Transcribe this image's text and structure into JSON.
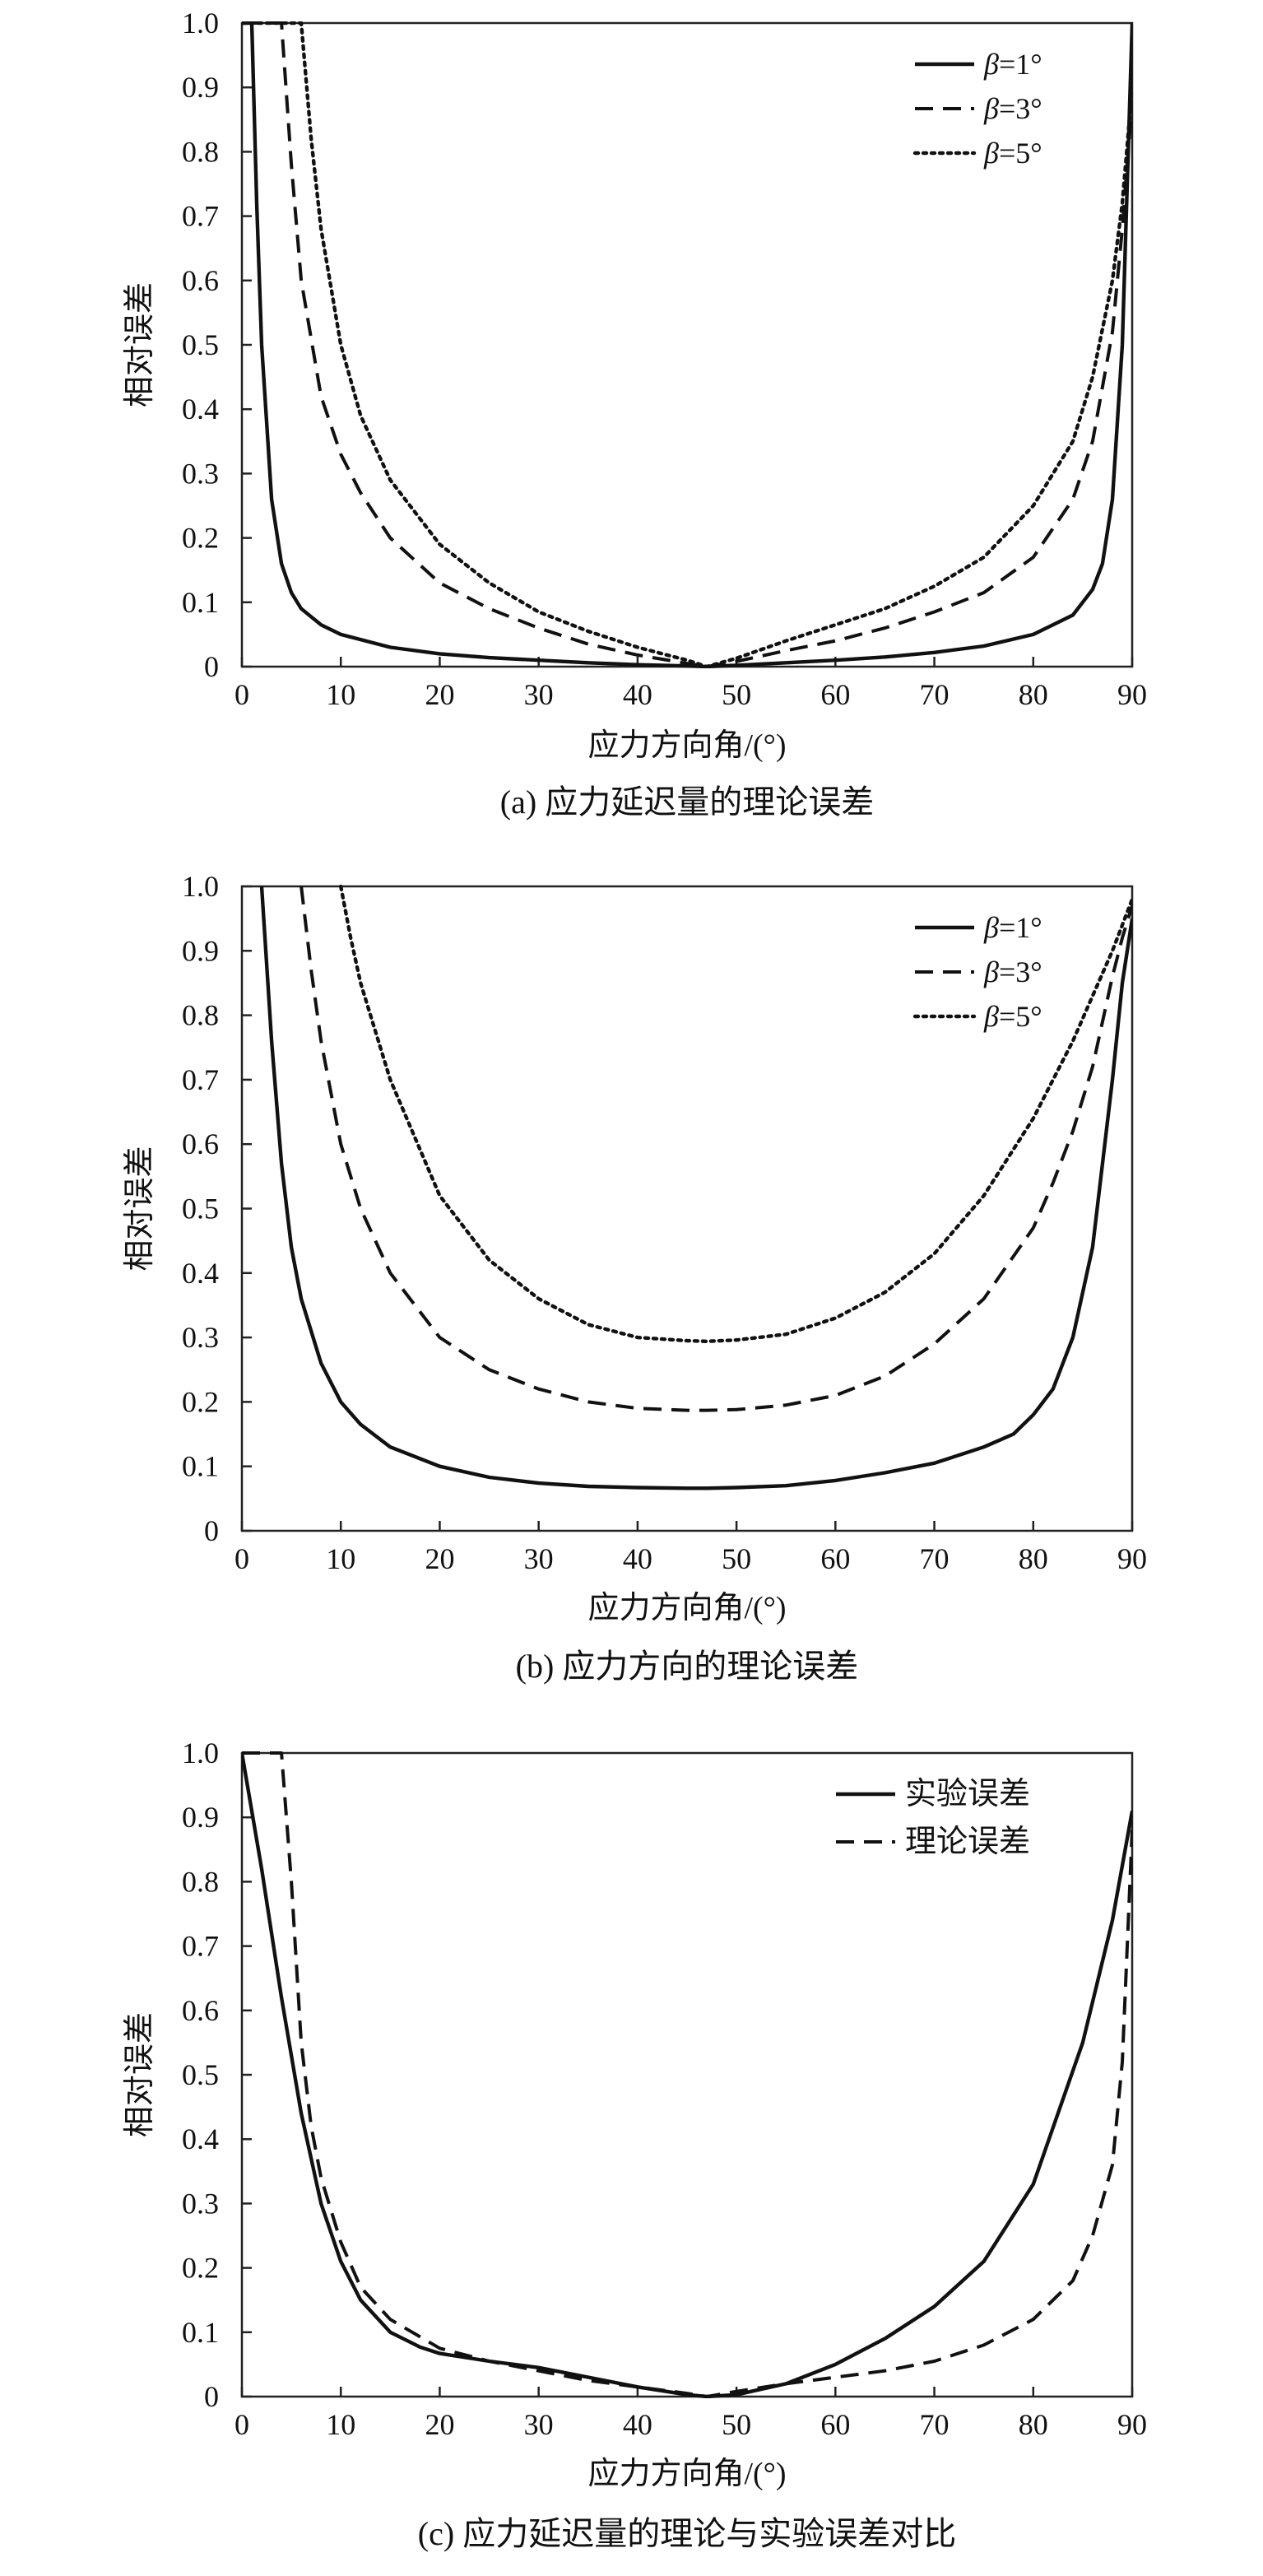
{
  "colors": {
    "line": "#111111",
    "axis": "#222222",
    "background": "#ffffff"
  },
  "chart_data": [
    {
      "id": "a",
      "type": "line",
      "caption": "(a) 应力延迟量的理论误差",
      "xlabel": "应力方向角/(°)",
      "ylabel": "相对误差",
      "xlim": [
        0,
        90
      ],
      "ylim": [
        0,
        1.0
      ],
      "xticks": [
        "0",
        "10",
        "20",
        "30",
        "40",
        "50",
        "60",
        "70",
        "80",
        "90"
      ],
      "yticks": [
        "0",
        "0.1",
        "0.2",
        "0.3",
        "0.4",
        "0.5",
        "0.6",
        "0.7",
        "0.8",
        "0.9",
        "1.0"
      ],
      "grid": false,
      "legend_position": "top-right",
      "series": [
        {
          "name": "β=1°",
          "style": "solid",
          "x": [
            0,
            1,
            1.5,
            2,
            3,
            4,
            5,
            6,
            8,
            10,
            15,
            20,
            25,
            30,
            35,
            40,
            45,
            47,
            50,
            55,
            60,
            65,
            70,
            75,
            80,
            84,
            86,
            87,
            88,
            89,
            90
          ],
          "y": [
            1.0,
            1.0,
            0.72,
            0.5,
            0.26,
            0.16,
            0.115,
            0.09,
            0.065,
            0.05,
            0.03,
            0.02,
            0.014,
            0.01,
            0.006,
            0.003,
            0.001,
            0,
            0.002,
            0.006,
            0.01,
            0.015,
            0.022,
            0.032,
            0.05,
            0.08,
            0.12,
            0.16,
            0.26,
            0.5,
            1.0
          ]
        },
        {
          "name": "β=3°",
          "style": "dashed",
          "x": [
            0,
            4,
            5,
            6,
            8,
            10,
            12,
            15,
            20,
            25,
            30,
            35,
            40,
            45,
            47,
            50,
            55,
            60,
            65,
            70,
            75,
            80,
            84,
            86,
            88,
            89,
            90
          ],
          "y": [
            1.0,
            1.0,
            0.78,
            0.6,
            0.42,
            0.33,
            0.27,
            0.2,
            0.13,
            0.09,
            0.06,
            0.035,
            0.018,
            0.005,
            0,
            0.008,
            0.025,
            0.04,
            0.06,
            0.085,
            0.115,
            0.17,
            0.26,
            0.35,
            0.52,
            0.68,
            0.88
          ]
        },
        {
          "name": "β=5°",
          "style": "dotted",
          "x": [
            0,
            6,
            7,
            8,
            10,
            12,
            15,
            20,
            25,
            30,
            35,
            40,
            45,
            47,
            50,
            55,
            60,
            65,
            70,
            75,
            80,
            84,
            86,
            88,
            89,
            90
          ],
          "y": [
            1.0,
            1.0,
            0.82,
            0.68,
            0.5,
            0.39,
            0.29,
            0.19,
            0.13,
            0.085,
            0.055,
            0.03,
            0.01,
            0,
            0.013,
            0.04,
            0.065,
            0.09,
            0.125,
            0.17,
            0.25,
            0.35,
            0.45,
            0.6,
            0.72,
            0.9
          ]
        }
      ]
    },
    {
      "id": "b",
      "type": "line",
      "caption": "(b) 应力方向的理论误差",
      "xlabel": "应力方向角/(°)",
      "ylabel": "相对误差",
      "xlim": [
        0,
        90
      ],
      "ylim": [
        0,
        1.0
      ],
      "xticks": [
        "0",
        "10",
        "20",
        "30",
        "40",
        "50",
        "60",
        "70",
        "80",
        "90"
      ],
      "yticks": [
        "0",
        "0.1",
        "0.2",
        "0.3",
        "0.4",
        "0.5",
        "0.6",
        "0.7",
        "0.8",
        "0.9",
        "1.0"
      ],
      "grid": false,
      "legend_position": "top-right",
      "series": [
        {
          "name": "β=1°",
          "style": "solid",
          "x": [
            2,
            3,
            4,
            5,
            6,
            8,
            10,
            12,
            15,
            20,
            25,
            30,
            35,
            40,
            45,
            47,
            50,
            55,
            60,
            65,
            70,
            75,
            78,
            80,
            82,
            84,
            86,
            88,
            89,
            90
          ],
          "y": [
            1.0,
            0.76,
            0.57,
            0.44,
            0.36,
            0.26,
            0.2,
            0.165,
            0.13,
            0.1,
            0.083,
            0.074,
            0.069,
            0.067,
            0.066,
            0.066,
            0.067,
            0.07,
            0.078,
            0.09,
            0.105,
            0.13,
            0.15,
            0.18,
            0.22,
            0.3,
            0.44,
            0.7,
            0.85,
            0.95
          ]
        },
        {
          "name": "β=3°",
          "style": "dashed",
          "x": [
            6,
            7,
            8,
            10,
            12,
            15,
            20,
            25,
            30,
            35,
            40,
            45,
            47,
            50,
            55,
            60,
            65,
            70,
            75,
            80,
            82,
            84,
            86,
            88,
            89,
            90
          ],
          "y": [
            1.0,
            0.87,
            0.76,
            0.6,
            0.5,
            0.4,
            0.3,
            0.25,
            0.22,
            0.2,
            0.19,
            0.187,
            0.187,
            0.188,
            0.195,
            0.21,
            0.24,
            0.29,
            0.36,
            0.47,
            0.54,
            0.62,
            0.72,
            0.86,
            0.92,
            0.97
          ]
        },
        {
          "name": "β=5°",
          "style": "dotted",
          "x": [
            10,
            11,
            12,
            15,
            20,
            25,
            30,
            35,
            40,
            45,
            47,
            50,
            55,
            60,
            65,
            70,
            75,
            80,
            84,
            86,
            88,
            89,
            90
          ],
          "y": [
            1.0,
            0.92,
            0.85,
            0.7,
            0.52,
            0.42,
            0.36,
            0.32,
            0.3,
            0.295,
            0.294,
            0.296,
            0.305,
            0.33,
            0.37,
            0.43,
            0.52,
            0.64,
            0.76,
            0.83,
            0.9,
            0.94,
            0.98
          ]
        }
      ]
    },
    {
      "id": "c",
      "type": "line",
      "caption": "(c) 应力延迟量的理论与实验误差对比",
      "xlabel": "应力方向角/(°)",
      "ylabel": "相对误差",
      "xlim": [
        0,
        90
      ],
      "ylim": [
        0,
        1.0
      ],
      "xticks": [
        "0",
        "10",
        "20",
        "30",
        "40",
        "50",
        "60",
        "70",
        "80",
        "90"
      ],
      "yticks": [
        "0",
        "0.1",
        "0.2",
        "0.3",
        "0.4",
        "0.5",
        "0.6",
        "0.7",
        "0.8",
        "0.9",
        "1.0"
      ],
      "grid": false,
      "legend_position": "top-right",
      "series": [
        {
          "name": "实验误差",
          "style": "solid",
          "x": [
            0,
            2,
            4,
            6,
            8,
            10,
            12,
            15,
            18,
            20,
            25,
            30,
            35,
            40,
            45,
            47,
            50,
            55,
            60,
            65,
            70,
            75,
            80,
            85,
            88,
            90
          ],
          "y": [
            1.0,
            0.82,
            0.62,
            0.44,
            0.3,
            0.21,
            0.15,
            0.1,
            0.077,
            0.067,
            0.055,
            0.045,
            0.03,
            0.015,
            0.003,
            0,
            0.003,
            0.02,
            0.05,
            0.09,
            0.14,
            0.21,
            0.33,
            0.55,
            0.74,
            0.91
          ]
        },
        {
          "name": "理论误差",
          "style": "dashed",
          "x": [
            0,
            4,
            5,
            6,
            7,
            8,
            10,
            12,
            15,
            20,
            25,
            30,
            35,
            40,
            45,
            47,
            50,
            55,
            60,
            65,
            70,
            75,
            80,
            84,
            86,
            88,
            89,
            90
          ],
          "y": [
            1.0,
            1.0,
            0.8,
            0.55,
            0.42,
            0.34,
            0.24,
            0.17,
            0.12,
            0.075,
            0.055,
            0.04,
            0.025,
            0.015,
            0.005,
            0,
            0.008,
            0.02,
            0.03,
            0.04,
            0.055,
            0.08,
            0.12,
            0.18,
            0.25,
            0.36,
            0.52,
            0.88
          ]
        }
      ]
    }
  ]
}
